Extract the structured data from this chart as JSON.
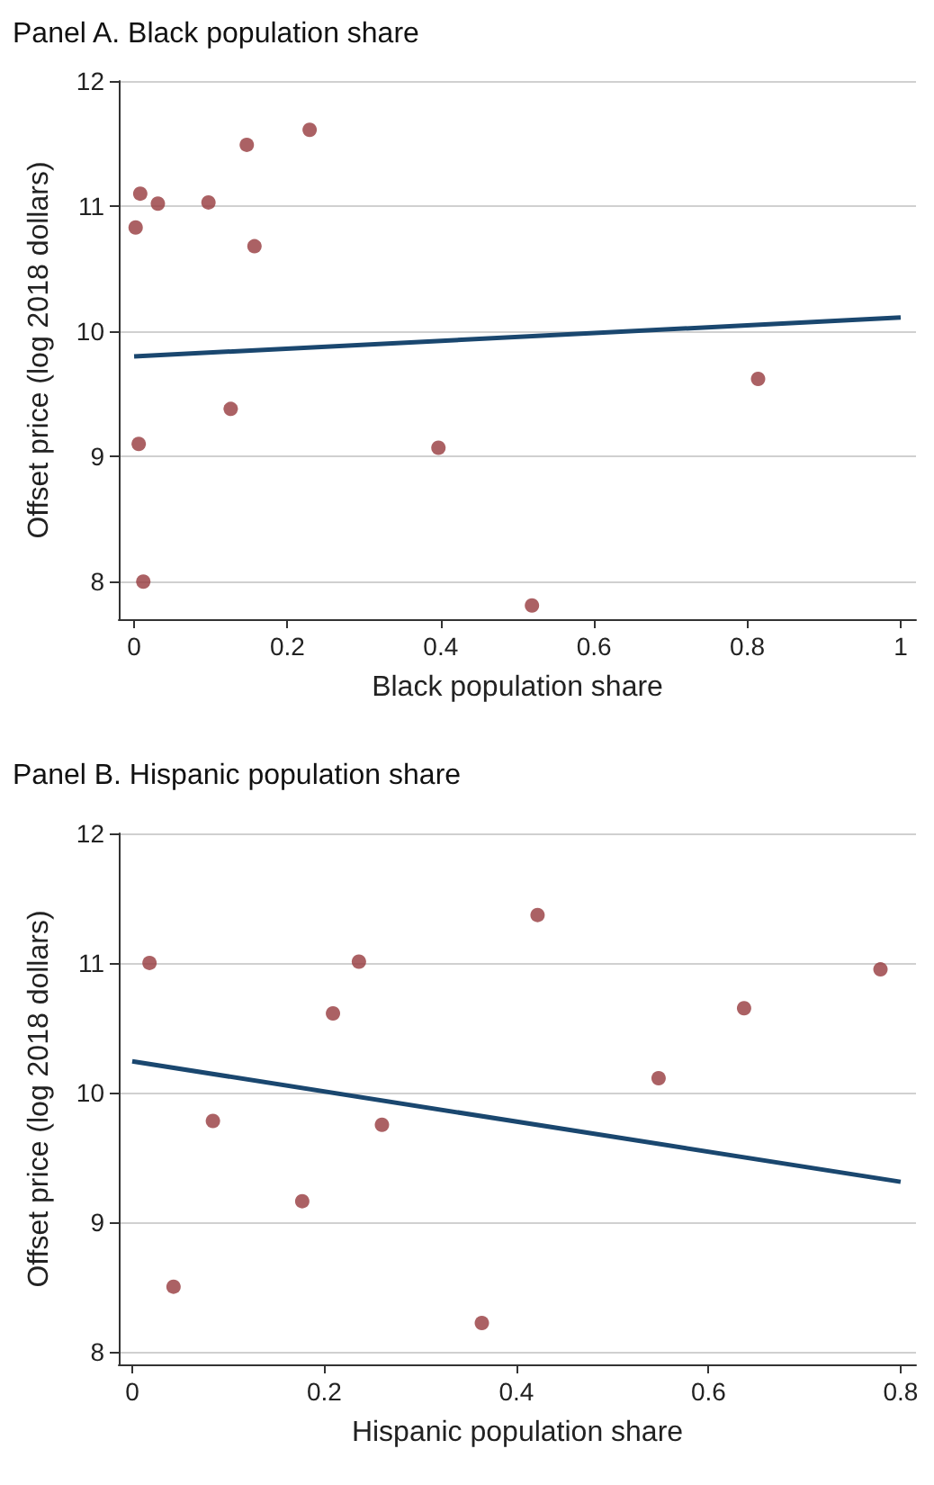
{
  "chart_data": [
    {
      "type": "scatter",
      "title": "Panel A. Black population share",
      "xlabel": "Black population share",
      "ylabel": "Offset price (log 2018 dollars)",
      "xlim": [
        -0.02,
        1.02
      ],
      "xticks": [
        0,
        0.2,
        0.4,
        0.6,
        0.8,
        1
      ],
      "ylim": [
        7.7,
        12
      ],
      "yticks": [
        8,
        9,
        10,
        11,
        12
      ],
      "grid": "y",
      "series": [
        {
          "marker": "circle",
          "color": "#963a3d",
          "x": [
            0.002,
            0.008,
            0.031,
            0.097,
            0.147,
            0.229,
            0.157,
            0.814,
            0.126,
            0.006,
            0.397,
            0.012,
            0.519
          ],
          "values": [
            10.83,
            11.1,
            11.02,
            11.03,
            11.49,
            11.61,
            10.68,
            9.62,
            9.38,
            9.1,
            9.07,
            8.0,
            7.81
          ]
        },
        {
          "type": "line",
          "marker": "none",
          "color": "#1a476f",
          "x": [
            0,
            1
          ],
          "values": [
            9.8,
            10.11
          ]
        }
      ]
    },
    {
      "type": "scatter",
      "title": "Panel B. Hispanic population share",
      "xlabel": "Hispanic population share",
      "ylabel": "Offset price (log 2018 dollars)",
      "xlim": [
        -0.014,
        0.816
      ],
      "xticks": [
        0,
        0.2,
        0.4,
        0.6,
        0.8
      ],
      "ylim": [
        7.9,
        12
      ],
      "yticks": [
        8,
        9,
        10,
        11,
        12
      ],
      "grid": "y",
      "series": [
        {
          "marker": "circle",
          "color": "#963a3d",
          "x": [
            0.018,
            0.043,
            0.084,
            0.177,
            0.209,
            0.236,
            0.26,
            0.364,
            0.422,
            0.548,
            0.637,
            0.779
          ],
          "values": [
            11.0,
            8.5,
            9.78,
            9.16,
            10.61,
            11.01,
            9.75,
            8.22,
            11.37,
            10.11,
            10.65,
            10.95
          ]
        },
        {
          "type": "line",
          "marker": "none",
          "color": "#1a476f",
          "x": [
            0,
            0.8
          ],
          "values": [
            10.24,
            9.31
          ]
        }
      ]
    }
  ]
}
